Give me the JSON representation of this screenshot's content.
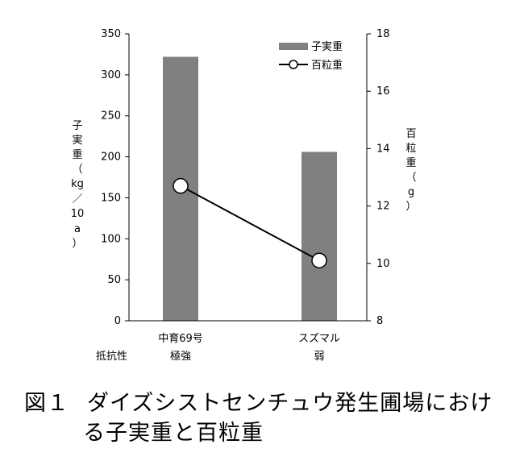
{
  "chart_data": {
    "type": "bar+line",
    "categories": [
      "中育69号",
      "スズマル"
    ],
    "category_sublabels": [
      "極強",
      "弱"
    ],
    "row_label": "抵抗性",
    "series": [
      {
        "name": "子実重",
        "kind": "bar",
        "axis": "left",
        "values": [
          322,
          206
        ],
        "color": "#808080"
      },
      {
        "name": "百粒重",
        "kind": "line",
        "axis": "right",
        "values": [
          12.7,
          10.1
        ],
        "color": "#000000"
      }
    ],
    "ylabel_left": [
      "子",
      "実",
      "重",
      "（",
      "kg",
      "／",
      "10",
      "a",
      "）"
    ],
    "ylabel_right": [
      "百",
      "粒",
      "重",
      "（",
      "g",
      "）"
    ],
    "ylim_left": [
      0,
      350
    ],
    "yticks_left": [
      0,
      50,
      100,
      150,
      200,
      250,
      300,
      350
    ],
    "ylim_right": [
      8,
      18
    ],
    "yticks_right": [
      8,
      10,
      12,
      14,
      16,
      18
    ],
    "grid": false,
    "legend_position": "top-right"
  },
  "caption": {
    "number": "図１",
    "line1": "ダイズシストセンチュウ発生圃場におけ",
    "line2": "る子実重と百粒重"
  }
}
